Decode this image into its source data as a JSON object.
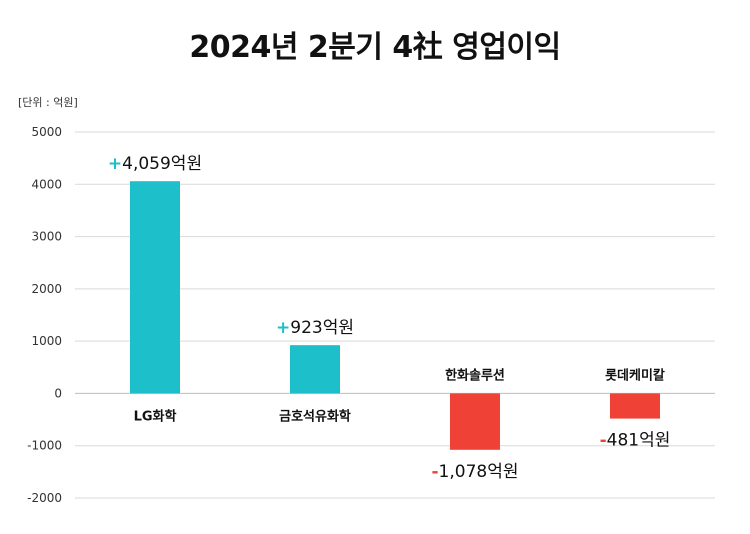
{
  "chart_data": {
    "type": "bar",
    "title": "2024년 2분기 4社 영업이익",
    "unit_label": "[단위 : 억원]",
    "categories": [
      "LG화학",
      "금호석유화학",
      "한화솔루션",
      "롯데케미칼"
    ],
    "values": [
      4059,
      923,
      -1078,
      -481
    ],
    "data_labels": [
      {
        "sign": "+",
        "text": "4,059억원"
      },
      {
        "sign": "+",
        "text": "923억원"
      },
      {
        "sign": "-",
        "text": "1,078억원"
      },
      {
        "sign": "-",
        "text": "481억원"
      }
    ],
    "yticks": [
      "5000",
      "4000",
      "3000",
      "2000",
      "1000",
      "0",
      "-1000",
      "-2000"
    ],
    "ylim": [
      -2000,
      5000
    ],
    "grid": true,
    "colors": {
      "positive": "#1dbfcb",
      "negative": "#ef4136",
      "grid": "#d9d9d9"
    }
  }
}
